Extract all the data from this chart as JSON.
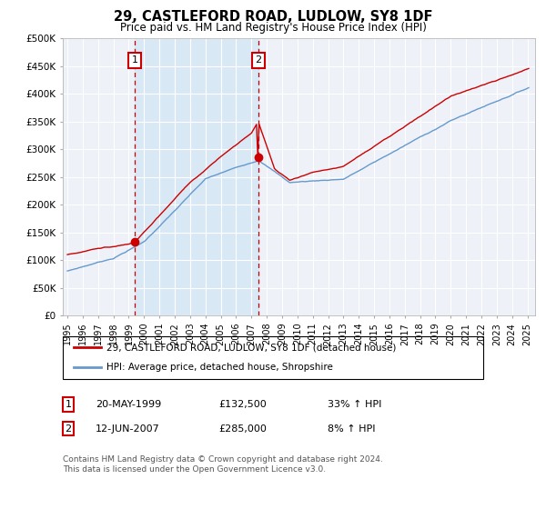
{
  "title": "29, CASTLEFORD ROAD, LUDLOW, SY8 1DF",
  "subtitle": "Price paid vs. HM Land Registry's House Price Index (HPI)",
  "legend_label_red": "29, CASTLEFORD ROAD, LUDLOW, SY8 1DF (detached house)",
  "legend_label_blue": "HPI: Average price, detached house, Shropshire",
  "footnote": "Contains HM Land Registry data © Crown copyright and database right 2024.\nThis data is licensed under the Open Government Licence v3.0.",
  "sale1_date": "20-MAY-1999",
  "sale1_price": "£132,500",
  "sale1_hpi": "33% ↑ HPI",
  "sale2_date": "12-JUN-2007",
  "sale2_price": "£285,000",
  "sale2_hpi": "8% ↑ HPI",
  "sale1_year": 1999.38,
  "sale2_year": 2007.44,
  "sale1_value": 132500,
  "sale2_value": 285000,
  "ylim": [
    0,
    500000
  ],
  "yticks": [
    0,
    50000,
    100000,
    150000,
    200000,
    250000,
    300000,
    350000,
    400000,
    450000,
    500000
  ],
  "red_color": "#cc0000",
  "blue_color": "#6699cc",
  "shade_color": "#d8e8f5",
  "plot_bg": "#eef2f8"
}
